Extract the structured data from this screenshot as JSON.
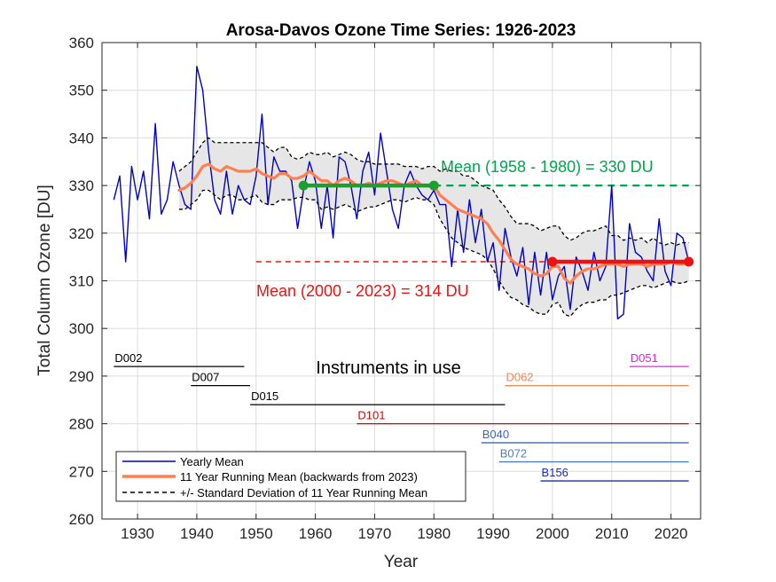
{
  "chart_data": {
    "type": "line",
    "title": "Arosa-Davos Ozone Time Series: 1926-2023",
    "xlabel": "Year",
    "ylabel": "Total Column Ozone [DU]",
    "xlim": [
      1924,
      2025
    ],
    "ylim": [
      260,
      360
    ],
    "xticks": [
      1930,
      1940,
      1950,
      1960,
      1970,
      1980,
      1990,
      2000,
      2010,
      2020
    ],
    "yticks": [
      260,
      270,
      280,
      290,
      300,
      310,
      320,
      330,
      340,
      350,
      360
    ],
    "grid": true,
    "legend_position": "bottom-left",
    "series": [
      {
        "name": "Yearly Mean",
        "color": "#0000cc",
        "x": [
          1926,
          1927,
          1928,
          1929,
          1930,
          1931,
          1932,
          1933,
          1934,
          1935,
          1936,
          1937,
          1938,
          1939,
          1940,
          1941,
          1942,
          1943,
          1944,
          1945,
          1946,
          1947,
          1948,
          1949,
          1950,
          1951,
          1952,
          1953,
          1954,
          1955,
          1956,
          1957,
          1958,
          1959,
          1960,
          1961,
          1962,
          1963,
          1964,
          1965,
          1966,
          1967,
          1968,
          1969,
          1970,
          1971,
          1972,
          1973,
          1974,
          1975,
          1976,
          1977,
          1978,
          1979,
          1980,
          1981,
          1982,
          1983,
          1984,
          1985,
          1986,
          1987,
          1988,
          1989,
          1990,
          1991,
          1992,
          1993,
          1994,
          1995,
          1996,
          1997,
          1998,
          1999,
          2000,
          2001,
          2002,
          2003,
          2004,
          2005,
          2006,
          2007,
          2008,
          2009,
          2010,
          2011,
          2012,
          2013,
          2014,
          2015,
          2016,
          2017,
          2018,
          2019,
          2020,
          2021,
          2022,
          2023
        ],
        "values": [
          327,
          332,
          314,
          334,
          327,
          333,
          323,
          343,
          324,
          327,
          335,
          330,
          326,
          325,
          355,
          350,
          337,
          327,
          324,
          333,
          324,
          330,
          327,
          326,
          332,
          345,
          326,
          336,
          333,
          333,
          331,
          321,
          329,
          335,
          331,
          321,
          330,
          319,
          336,
          335,
          330,
          323,
          333,
          337,
          328,
          341,
          333,
          325,
          321,
          330,
          333,
          330,
          328,
          327,
          329,
          326,
          326,
          313,
          325,
          316,
          327,
          318,
          325,
          314,
          318,
          308,
          321,
          315,
          311,
          317,
          305,
          316,
          307,
          316,
          306,
          311,
          313,
          304,
          315,
          312,
          308,
          316,
          310,
          313,
          330,
          302,
          303,
          322,
          316,
          315,
          312,
          310,
          323,
          312,
          309,
          320,
          319,
          314
        ],
        "width": 1.4
      },
      {
        "name": "11 Year Running Mean (backwards from 2023)",
        "color": "#ff7f50",
        "x": [
          1937,
          1938,
          1939,
          1940,
          1941,
          1942,
          1943,
          1944,
          1945,
          1946,
          1947,
          1948,
          1949,
          1950,
          1951,
          1952,
          1953,
          1954,
          1955,
          1956,
          1957,
          1958,
          1959,
          1960,
          1961,
          1962,
          1963,
          1964,
          1965,
          1966,
          1967,
          1968,
          1969,
          1970,
          1971,
          1972,
          1973,
          1974,
          1975,
          1976,
          1977,
          1978,
          1979,
          1980,
          1981,
          1982,
          1983,
          1984,
          1985,
          1986,
          1987,
          1988,
          1989,
          1990,
          1991,
          1992,
          1993,
          1994,
          1995,
          1996,
          1997,
          1998,
          1999,
          2000,
          2001,
          2002,
          2003,
          2004,
          2005,
          2006,
          2007,
          2008,
          2009,
          2010,
          2011,
          2012,
          2013,
          2014,
          2015,
          2016,
          2017,
          2018,
          2019,
          2020,
          2021,
          2022,
          2023
        ],
        "values": [
          329,
          329.5,
          330.5,
          332,
          334,
          334.5,
          333.5,
          333,
          334,
          333.5,
          333,
          333,
          333,
          333.5,
          332.5,
          332,
          331.5,
          332.5,
          332.5,
          331.5,
          331.5,
          332,
          333,
          332,
          331,
          331,
          330,
          331,
          331.5,
          331,
          330,
          330,
          330.5,
          330,
          330.5,
          331,
          331,
          330.5,
          330,
          330.5,
          331,
          330,
          330,
          330,
          328,
          327,
          326,
          325,
          324.5,
          324,
          323.5,
          323,
          322,
          320,
          318.5,
          316.5,
          314.5,
          313.5,
          313,
          312.5,
          311.5,
          311,
          311.5,
          313,
          313,
          310.5,
          309.5,
          311,
          312,
          312.5,
          312.5,
          313,
          313.5,
          313.5,
          313.5,
          313,
          313.5,
          313.5,
          313.5,
          313,
          313.5,
          313.5,
          313.5,
          314,
          313.5,
          313.5,
          314
        ],
        "width": 3.2
      },
      {
        "name": "+/- Standard Deviation of 11 Year Running Mean",
        "color": "#000000",
        "x": [
          1937,
          1938,
          1939,
          1940,
          1941,
          1942,
          1943,
          1944,
          1945,
          1946,
          1947,
          1948,
          1949,
          1950,
          1951,
          1952,
          1953,
          1954,
          1955,
          1956,
          1957,
          1958,
          1959,
          1960,
          1961,
          1962,
          1963,
          1964,
          1965,
          1966,
          1967,
          1968,
          1969,
          1970,
          1971,
          1972,
          1973,
          1974,
          1975,
          1976,
          1977,
          1978,
          1979,
          1980,
          1981,
          1982,
          1983,
          1984,
          1985,
          1986,
          1987,
          1988,
          1989,
          1990,
          1991,
          1992,
          1993,
          1994,
          1995,
          1996,
          1997,
          1998,
          1999,
          2000,
          2001,
          2002,
          2003,
          2004,
          2005,
          2006,
          2007,
          2008,
          2009,
          2010,
          2011,
          2012,
          2013,
          2014,
          2015,
          2016,
          2017,
          2018,
          2019,
          2020,
          2021,
          2022,
          2023
        ],
        "upper": [
          333,
          334,
          335,
          337,
          339,
          340,
          339,
          339,
          339,
          339,
          339,
          339,
          339,
          339,
          339,
          338,
          337,
          338,
          338,
          336,
          335.5,
          336,
          337,
          336.5,
          336.5,
          337,
          336,
          336.5,
          337,
          336.5,
          335.5,
          335,
          335,
          334.5,
          334.5,
          334.5,
          334.5,
          334.5,
          334,
          334,
          334,
          333.5,
          334,
          334,
          333,
          333.5,
          333,
          333,
          332,
          332,
          331,
          330,
          329.5,
          329,
          327,
          325.5,
          323.5,
          322,
          322,
          322,
          321.5,
          320.5,
          321,
          321.5,
          321.5,
          319.5,
          318.5,
          319,
          320,
          320.5,
          320.5,
          321,
          321.5,
          319.5,
          319.5,
          318.5,
          319,
          318.5,
          319,
          318,
          319,
          318,
          317.5,
          318,
          317.5,
          318,
          318
        ],
        "lower": [
          325,
          325,
          326,
          327,
          329,
          329,
          328,
          327,
          328,
          328,
          327,
          327,
          327.5,
          328,
          326.5,
          326,
          326,
          327,
          327,
          327,
          327.5,
          327.5,
          327,
          327,
          325,
          325.5,
          325,
          325.5,
          326,
          325.5,
          324.5,
          325,
          325.5,
          325.5,
          326,
          326.5,
          327,
          327,
          326.5,
          327,
          327.5,
          327,
          327,
          326,
          323,
          321,
          319,
          318,
          317,
          316.5,
          316,
          315.5,
          314.5,
          312.5,
          310,
          308,
          306.5,
          306,
          305,
          304.5,
          303.5,
          303,
          303,
          305,
          305.5,
          303,
          302.5,
          304,
          305,
          305.5,
          305.5,
          306,
          306,
          307,
          307,
          307.5,
          308,
          308.5,
          309,
          309,
          308.5,
          309,
          309.5,
          310,
          309.5,
          309.5,
          310
        ],
        "style": "dashed"
      }
    ],
    "reference_lines": [
      {
        "label": "Mean (1958 - 1980) = 330 DU",
        "value": 330,
        "dash_from": 1980,
        "dash_to": 2023,
        "solid_from": 1958,
        "solid_to": 1980,
        "color": "#00a64f",
        "solid_color": "#1e9e2e"
      },
      {
        "label": "Mean (2000 - 2023) = 314 DU",
        "value": 314,
        "dash_from": 1950,
        "dash_to": 2000,
        "solid_from": 2000,
        "solid_to": 2023,
        "color": "#ee1111",
        "solid_color": "#ee1111"
      }
    ],
    "instruments_title": "Instruments in use",
    "instruments": [
      {
        "name": "D002",
        "y": 292,
        "x_from": 1926,
        "x_to": 1948,
        "color": "#000000"
      },
      {
        "name": "D007",
        "y": 288,
        "x_from": 1939,
        "x_to": 1949,
        "color": "#000000"
      },
      {
        "name": "D015",
        "y": 284,
        "x_from": 1949,
        "x_to": 1992,
        "color": "#000000"
      },
      {
        "name": "D101",
        "y": 280,
        "x_from": 1967,
        "x_to": 2023,
        "color": "#dd0000"
      },
      {
        "name": "B040",
        "y": 276,
        "x_from": 1988,
        "x_to": 2023,
        "color": "#3a66b8"
      },
      {
        "name": "B072",
        "y": 272,
        "x_from": 1991,
        "x_to": 2023,
        "color": "#4f7fc0"
      },
      {
        "name": "B156",
        "y": 268,
        "x_from": 1998,
        "x_to": 2023,
        "color": "#1a2fa8"
      },
      {
        "name": "D062",
        "y": 288,
        "x_from": 1992,
        "x_to": 2023,
        "color": "#ee8855"
      },
      {
        "name": "D051",
        "y": 292,
        "x_from": 2013,
        "x_to": 2023,
        "color": "#e022e0"
      }
    ]
  }
}
